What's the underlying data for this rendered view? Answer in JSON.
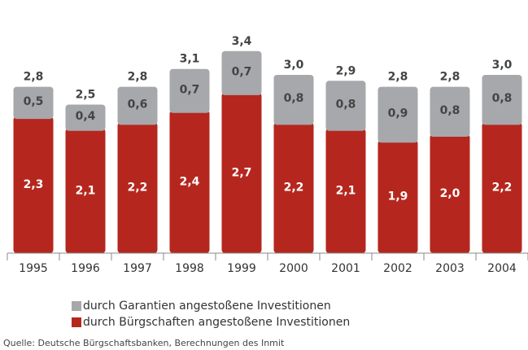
{
  "chart_data": {
    "type": "bar",
    "stacked": true,
    "categories": [
      "1995",
      "1996",
      "1997",
      "1998",
      "1999",
      "2000",
      "2001",
      "2002",
      "2003",
      "2004"
    ],
    "series": [
      {
        "name": "durch Bürgschaften angestoßene Investitionen",
        "color": "#b5271e",
        "values": [
          2.3,
          2.1,
          2.2,
          2.4,
          2.7,
          2.2,
          2.1,
          1.9,
          2.0,
          2.2
        ],
        "value_labels": [
          "2,3",
          "2,1",
          "2,2",
          "2,4",
          "2,7",
          "2,2",
          "2,1",
          "1,9",
          "2,0",
          "2,2"
        ]
      },
      {
        "name": "durch Garantien angestoßene Investitionen",
        "color": "#a6a8ab",
        "values": [
          0.5,
          0.4,
          0.6,
          0.7,
          0.7,
          0.8,
          0.8,
          0.9,
          0.8,
          0.8
        ],
        "value_labels": [
          "0,5",
          "0,4",
          "0,6",
          "0,7",
          "0,7",
          "0,8",
          "0,8",
          "0,9",
          "0,8",
          "0,8"
        ]
      }
    ],
    "total_labels": [
      "2,8",
      "2,5",
      "2,8",
      "3,1",
      "3,4",
      "3,0",
      "2,9",
      "2,8",
      "2,8",
      "3,0"
    ],
    "source": "Quelle: Deutsche Bürgschaftsbanken, Berechnungen des Inmit"
  }
}
